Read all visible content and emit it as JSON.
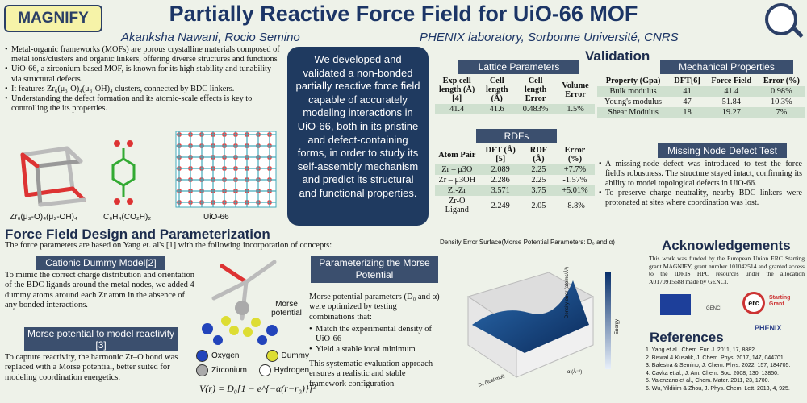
{
  "header": {
    "logo_text": "MAGNIFY",
    "title": "Partially Reactive Force Field for UiO-66 MOF",
    "authors": "Akanksha Nawani, Rocio Semino",
    "affiliation": "PHENIX laboratory, Sorbonne Université, CNRS"
  },
  "intro": {
    "bullets": [
      "Metal-organic frameworks (MOFs) are porous crystalline materials composed of metal ions/clusters and organic linkers, offering diverse structures and functions",
      "UiO-66, a zirconium-based MOF, is known for its high stability and tunability via structural defects.",
      "It features Zr₆(μ₃-O)₄(μ₃-OH)₄ clusters, connected by BDC linkers.",
      "Understanding the defect formation and its atomic-scale effects is key to controlling the its properties."
    ],
    "label_cluster": "Zr₆(μ₃-O)₄(μ₃-OH)₄",
    "label_linker": "C₆H₄(CO₂H)₂",
    "label_mof": "UiO-66"
  },
  "summary": "We developed and validated a non-bonded partially reactive force field capable of accurately modeling interactions in UiO-66, both in its pristine and defect-containing forms, in order to study its self-assembly mechanism and predict its structural and functional properties.",
  "validation": {
    "title": "Validation",
    "lattice": {
      "title": "Lattice Parameters",
      "headers": [
        "Exp cell length (Å) [4]",
        "Cell length (Å)",
        "Cell length Error",
        "Volume Error"
      ],
      "row": [
        "41.4",
        "41.6",
        "0.483%",
        "1.5%"
      ]
    },
    "rdfs": {
      "title": "RDFs",
      "headers": [
        "Atom Pair",
        "DFT (Å) [5]",
        "RDF (Å)",
        "Error (%)"
      ],
      "rows": [
        [
          "Zr – μ3O",
          "2.089",
          "2.25",
          "+7.7%"
        ],
        [
          "Zr – μ3OH",
          "2.286",
          "2.25",
          "-1.57%"
        ],
        [
          "Zr-Zr",
          "3.571",
          "3.75",
          "+5.01%"
        ],
        [
          "Zr-O Ligand",
          "2.249",
          "2.05",
          "-8.8%"
        ]
      ]
    },
    "mech": {
      "title": "Mechanical Properties",
      "headers": [
        "Property (Gpa)",
        "DFT[6]",
        "Force Field",
        "Error (%)"
      ],
      "rows": [
        [
          "Bulk modulus",
          "41",
          "41.4",
          "0.98%"
        ],
        [
          "Young's modulus",
          "47",
          "51.84",
          "10.3%"
        ],
        [
          "Shear Modulus",
          "18",
          "19.27",
          "7%"
        ]
      ]
    },
    "defect": {
      "title": "Missing Node Defect Test",
      "bullets": [
        "A missing-node defect was introduced to test the force field's robustness. The structure stayed intact, confirming its ability to model topological defects in UiO-66.",
        "To preserve charge neutrality, nearby BDC linkers were protonated at sites where coordination was lost."
      ]
    }
  },
  "ff": {
    "title": "Force Field Design and Parameterization",
    "intro": "The force parameters are based on Yang et. al's [1] with the following incorporation of concepts:",
    "cationic_title": "Cationic Dummy Model[2]",
    "cationic_text": "To mimic the correct charge distribution and orientation of the BDC ligands around the metal nodes, we added 4 dummy atoms around each Zr atom in the absence of any bonded interactions.",
    "morse_title": "Morse potential to model reactivity [3]",
    "morse_text": "To capture reactivity, the harmonic Zr–O bond was replaced with a Morse potential, better suited for modeling coordination energetics.",
    "morse_label": "Morse potential",
    "legend": [
      "Oxygen",
      "Dummy",
      "Zirconium",
      "Hydrogen"
    ],
    "equation": "V(r) = D₀[1 − e^{−α(r−r₀)}]²",
    "param_title": "Parameterizing the Morse Potential",
    "param_text": "Morse potential parameters (D₀ and α) were optimized by testing combinations that:",
    "param_bullets": [
      "Match the experimental density of UiO-66",
      "Yield a stable local minimum"
    ],
    "param_end": "This systematic evaluation approach ensures a realistic and stable framework configuration"
  },
  "plot": {
    "title": "Density Error Surface(Morse Potential Parameters: D₀ and α)",
    "xlabel": "D₀ (kcal/mol)",
    "ylabel": "α (Å⁻¹)",
    "zlabel": "Density error (atoms/Å³)",
    "cbar": "Energy"
  },
  "ack": {
    "title": "Acknowledgements",
    "text": "This work was funded by the European Union ERC Starting grant MAGNIFY, grant number 101042514 and granted access to the IDRIS HPC resources under the allocation A0170915688 made by GENCI.",
    "logos": [
      "GENCI",
      "erc",
      "Starting Grant",
      "PHENIX"
    ]
  },
  "refs": {
    "title": "References",
    "items": [
      "1. Yang et al., Chem. Eur. J. 2011, 17, 8882.",
      "2. Biswal & Kusalik, J. Chem. Phys. 2017, 147, 044701.",
      "3. Balestra & Semino, J. Chem. Phys. 2022, 157, 184705.",
      "4. Cavka et al., J. Am. Chem. Soc. 2008, 130, 13850.",
      "5. Valenzano et al., Chem. Mater. 2011, 23, 1700.",
      "6. Wu, Yildirim & Zhou, J. Phys. Chem. Lett. 2013, 4, 925."
    ]
  },
  "colors": {
    "header_blue": "#3b4f6e",
    "title_blue": "#1c3566",
    "panel": "#1f3a60",
    "bg": "#eef2e9"
  }
}
